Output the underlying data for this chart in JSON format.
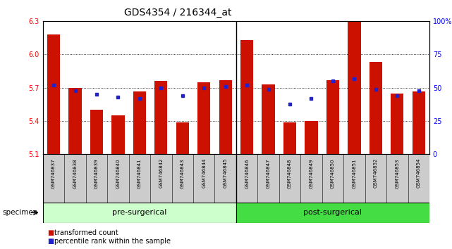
{
  "title": "GDS4354 / 216344_at",
  "samples": [
    "GSM746837",
    "GSM746838",
    "GSM746839",
    "GSM746840",
    "GSM746841",
    "GSM746842",
    "GSM746843",
    "GSM746844",
    "GSM746845",
    "GSM746846",
    "GSM746847",
    "GSM746848",
    "GSM746849",
    "GSM746850",
    "GSM746851",
    "GSM746852",
    "GSM746853",
    "GSM746854"
  ],
  "bar_values": [
    6.18,
    5.7,
    5.5,
    5.45,
    5.67,
    5.76,
    5.39,
    5.75,
    5.77,
    6.13,
    5.73,
    5.39,
    5.4,
    5.77,
    6.3,
    5.93,
    5.65,
    5.67
  ],
  "dot_values": [
    52,
    48,
    45,
    43,
    42,
    50,
    44,
    50,
    51,
    52,
    49,
    38,
    42,
    55,
    57,
    49,
    44,
    48
  ],
  "ylim_left": [
    5.1,
    6.3
  ],
  "ylim_right": [
    0,
    100
  ],
  "yticks_left": [
    5.1,
    5.4,
    5.7,
    6.0,
    6.3
  ],
  "yticks_right": [
    0,
    25,
    50,
    75,
    100
  ],
  "ytick_right_labels": [
    "0",
    "25",
    "50",
    "75",
    "100%"
  ],
  "bar_color": "#cc1100",
  "dot_color": "#2222cc",
  "group_pre_label": "pre-surgerical",
  "group_post_label": "post-surgerical",
  "pre_count": 9,
  "post_count": 9,
  "xlabel_specimen": "specimen",
  "legend_bar": "transformed count",
  "legend_dot": "percentile rank within the sample",
  "bg_group_pre": "#ccffcc",
  "bg_group_post": "#44dd44",
  "bg_xlabels": "#cccccc",
  "title_fontsize": 10,
  "tick_fontsize": 7,
  "bar_width": 0.6
}
